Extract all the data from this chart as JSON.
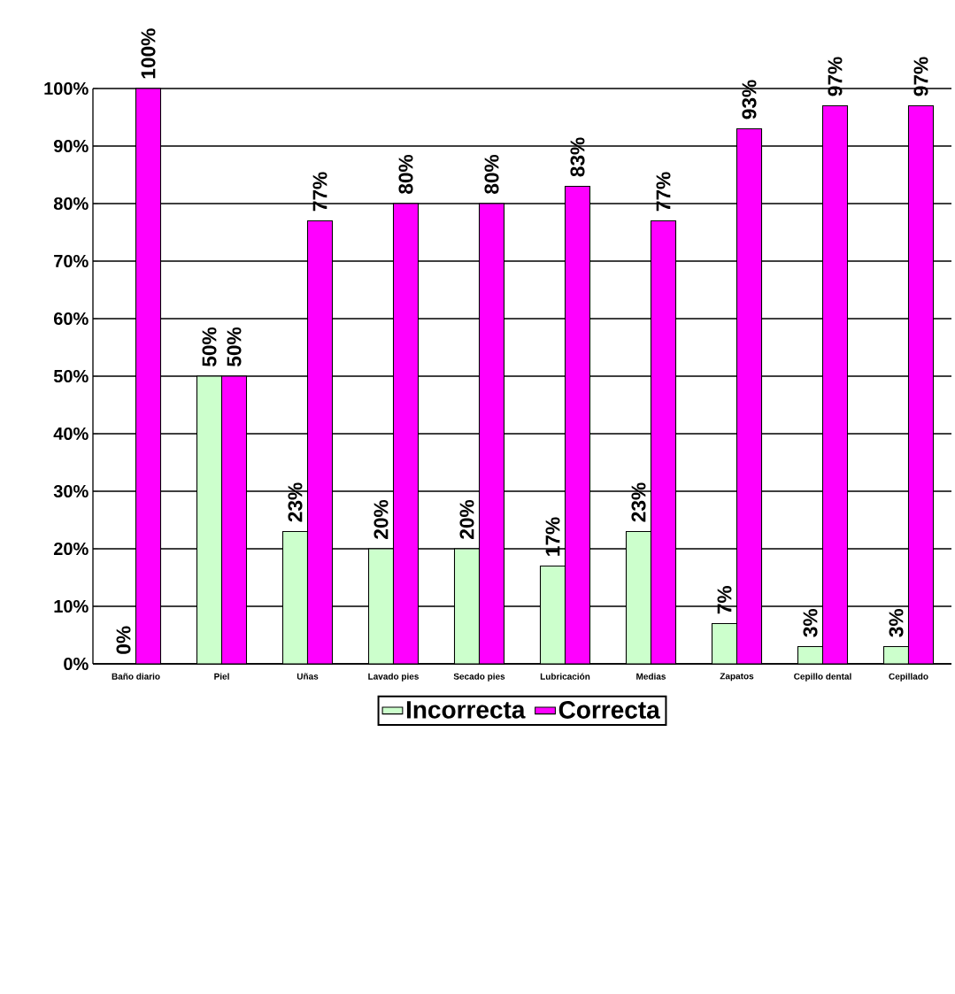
{
  "chart_data": {
    "type": "bar",
    "categories": [
      "Baño diario",
      "Piel",
      "Uñas",
      "Lavado pies",
      "Secado pies",
      "Lubricación",
      "Medias",
      "Zapatos",
      "Cepillo dental",
      "Cepillado"
    ],
    "series": [
      {
        "name": "Incorrecta",
        "color": "#ccffcc",
        "values": [
          0,
          50,
          23,
          20,
          20,
          17,
          23,
          7,
          3,
          3
        ],
        "value_labels": [
          "0%",
          "50%",
          "23%",
          "20%",
          "20%",
          "17%",
          "23%",
          "7%",
          "3%",
          "3%"
        ]
      },
      {
        "name": "Correcta",
        "color": "#ff00ff",
        "values": [
          100,
          50,
          77,
          80,
          80,
          83,
          77,
          93,
          97,
          97
        ],
        "value_labels": [
          "100%",
          "50%",
          "77%",
          "80%",
          "80%",
          "83%",
          "77%",
          "93%",
          "97%",
          "97%"
        ]
      }
    ],
    "ylim": [
      0,
      100
    ],
    "yticks": [
      {
        "value": 0,
        "label": "0%"
      },
      {
        "value": 10,
        "label": "10%"
      },
      {
        "value": 20,
        "label": "20%"
      },
      {
        "value": 30,
        "label": "30%"
      },
      {
        "value": 40,
        "label": "40%"
      },
      {
        "value": 50,
        "label": "50%"
      },
      {
        "value": 60,
        "label": "60%"
      },
      {
        "value": 70,
        "label": "70%"
      },
      {
        "value": 80,
        "label": "80%"
      },
      {
        "value": 90,
        "label": "90%"
      },
      {
        "value": 100,
        "label": "100%"
      }
    ],
    "grid": "y",
    "legend": "bottom"
  }
}
